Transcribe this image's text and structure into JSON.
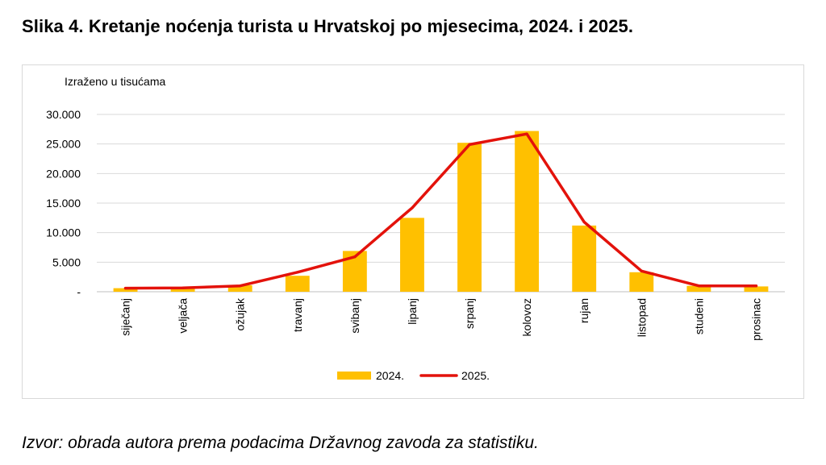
{
  "figure": {
    "title": "Slika 4. Kretanje noćenja turista u Hrvatskoj po mjesecima, 2024. i 2025.",
    "source_note": "Izvor: obrada autora prema podacima Državnog zavoda za statistiku.",
    "unit_label": "Izraženo u tisućama"
  },
  "chart_data": {
    "type": "bar",
    "title": "Kretanje noćenja turista u Hrvatskoj po mjesecima, 2024. i 2025.",
    "ylabel": "Izraženo u tisućama",
    "xlabel": "",
    "ylim": [
      0,
      30000
    ],
    "yticks": [
      0,
      5000,
      10000,
      15000,
      20000,
      25000,
      30000
    ],
    "ytick_labels": [
      "-",
      "5.000",
      "10.000",
      "15.000",
      "20.000",
      "25.000",
      "30.000"
    ],
    "grid": true,
    "legend_position": "bottom-center",
    "categories": [
      "siječanj",
      "veljača",
      "ožujak",
      "travanj",
      "svibanj",
      "lipanj",
      "srpanj",
      "kolovoz",
      "rujan",
      "listopad",
      "studeni",
      "prosinac"
    ],
    "series": [
      {
        "name": "2024.",
        "type": "bar",
        "color": "#FFC000",
        "values": [
          600,
          700,
          1100,
          2700,
          6900,
          12500,
          25200,
          27200,
          11200,
          3300,
          1000,
          900
        ]
      },
      {
        "name": "2025.",
        "type": "line",
        "color": "#E3120B",
        "values": [
          600,
          650,
          1000,
          3300,
          5900,
          14200,
          24900,
          26700,
          11800,
          3500,
          1000,
          1000
        ]
      }
    ]
  }
}
